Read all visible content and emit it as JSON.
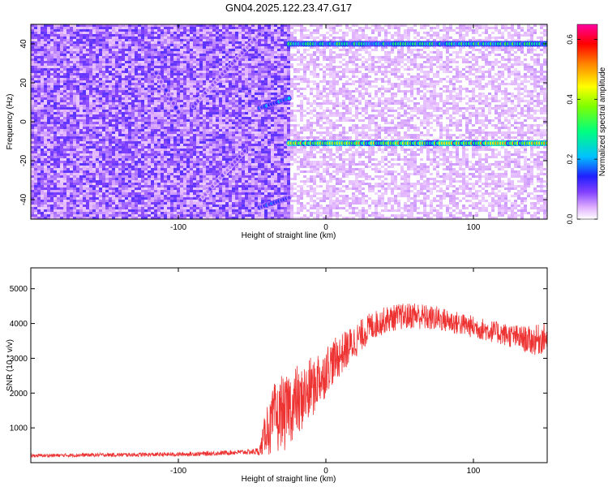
{
  "page": {
    "title": "GN04.2025.122.23.47.G17"
  },
  "chart_data": [
    {
      "type": "heatmap",
      "xlabel": "Height of straight line (km)",
      "ylabel": "Frequency (Hz)",
      "xlim": [
        -200,
        150
      ],
      "ylim": [
        -50,
        50
      ],
      "xticks": [
        -100,
        0,
        100
      ],
      "yticks": [
        40,
        20,
        0,
        -20,
        -40
      ],
      "colorbar": {
        "label": "Normalized spectral amplitude",
        "range": [
          0.0,
          0.65
        ],
        "ticks": [
          0.0,
          0.2,
          0.4,
          0.6
        ],
        "colors": [
          "#ffffff",
          "#e0b0ff",
          "#8040ff",
          "#2020ff",
          "#00c0ff",
          "#00ff80",
          "#80ff00",
          "#ffff00",
          "#ff8000",
          "#ff0000",
          "#ff00a0"
        ]
      },
      "noise_boundary_km": -25,
      "features": [
        {
          "type": "line",
          "x_start": -25,
          "x_end": 150,
          "frequency_hz": 40,
          "amplitude": 0.3
        },
        {
          "type": "line",
          "x_start": -25,
          "x_end": 150,
          "frequency_hz": -11,
          "amplitude": 0.4
        },
        {
          "type": "segment",
          "x_start": -45,
          "x_end": -25,
          "freq_start": 7,
          "freq_end": 12,
          "amplitude": 0.22
        },
        {
          "type": "segment",
          "x_start": -45,
          "x_end": -25,
          "freq_start": -44,
          "freq_end": -39,
          "amplitude": 0.2
        },
        {
          "type": "segment",
          "x_start": -115,
          "x_end": -100,
          "freq_start": 25,
          "freq_end": 5,
          "amplitude": 0.15
        },
        {
          "type": "segment",
          "x_start": -90,
          "x_end": -45,
          "freq_start": 8,
          "freq_end": 45,
          "amplitude": 0.12
        },
        {
          "type": "segment",
          "x_start": -85,
          "x_end": -55,
          "freq_start": -40,
          "freq_end": -15,
          "amplitude": 0.12
        }
      ]
    },
    {
      "type": "line",
      "xlabel": "Height of straight line (km)",
      "ylabel": "SNR (10 * v/v)",
      "xlim": [
        -200,
        150
      ],
      "ylim": [
        0,
        5600
      ],
      "xticks": [
        -100,
        0,
        100
      ],
      "yticks": [
        1000,
        2000,
        3000,
        4000,
        5000
      ],
      "color": "#ee3333",
      "series": [
        {
          "x": [
            -200,
            -180,
            -160,
            -140,
            -120,
            -100,
            -80,
            -60,
            -50,
            -45,
            -42,
            -40,
            -38,
            -35,
            -32,
            -30,
            -28,
            -25,
            -22,
            -20,
            -18,
            -15,
            -12,
            -10,
            -8,
            -5,
            -2,
            0,
            5,
            10,
            15,
            20,
            25,
            30,
            35,
            40,
            45,
            50,
            55,
            60,
            65,
            70,
            75,
            80,
            85,
            90,
            95,
            100,
            105,
            110,
            115,
            120,
            125,
            130,
            135,
            140,
            145,
            150
          ],
          "y": [
            200,
            210,
            220,
            225,
            230,
            240,
            260,
            300,
            310,
            330,
            700,
            1100,
            900,
            1400,
            1200,
            1600,
            1300,
            1700,
            1500,
            1900,
            1600,
            2000,
            1900,
            2300,
            2100,
            2500,
            2400,
            2700,
            2900,
            3100,
            3300,
            3500,
            3700,
            3900,
            4000,
            4100,
            4150,
            4200,
            4200,
            4250,
            4200,
            4150,
            4150,
            4100,
            4050,
            4000,
            3950,
            3900,
            3850,
            3800,
            3750,
            3700,
            3650,
            3600,
            3550,
            3500,
            3550,
            3600
          ],
          "spread": [
            50,
            50,
            55,
            55,
            60,
            60,
            65,
            70,
            80,
            120,
            500,
            700,
            800,
            900,
            1000,
            1000,
            1000,
            1000,
            1000,
            1000,
            950,
            900,
            900,
            850,
            800,
            800,
            750,
            700,
            650,
            600,
            550,
            500,
            450,
            420,
            400,
            380,
            380,
            380,
            380,
            400,
            380,
            370,
            360,
            350,
            350,
            340,
            330,
            320,
            320,
            320,
            320,
            330,
            340,
            360,
            380,
            420,
            450,
            420
          ]
        }
      ]
    }
  ]
}
